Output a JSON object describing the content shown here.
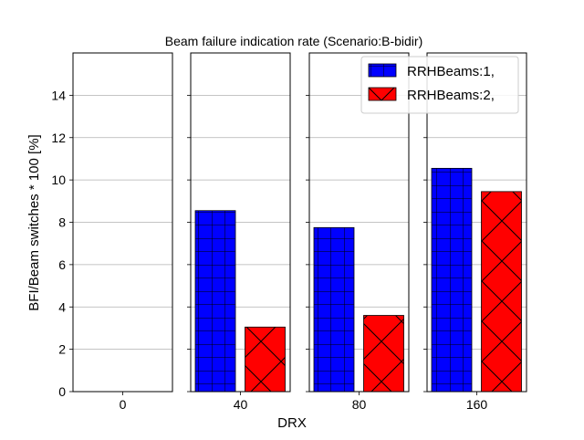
{
  "chart_data": {
    "type": "bar",
    "title": "Beam failure indication rate (Scenario:B-bidir)",
    "xlabel": "DRX",
    "ylabel": "BFI/Beam switches * 100 [%]",
    "ylim": [
      0,
      16
    ],
    "yticks": [
      0,
      2,
      4,
      6,
      8,
      10,
      12,
      14
    ],
    "grid": "horizontal",
    "legend_position": "top-right",
    "categories": [
      "0",
      "40",
      "80",
      "160"
    ],
    "series": [
      {
        "name": "RRHBeams:1,",
        "color": "#0000ff",
        "hatch": "grid",
        "values": [
          null,
          8.55,
          7.75,
          10.55
        ]
      },
      {
        "name": "RRHBeams:2,",
        "color": "#ff0000",
        "hatch": "cross",
        "values": [
          null,
          3.05,
          3.6,
          9.45
        ]
      }
    ]
  }
}
